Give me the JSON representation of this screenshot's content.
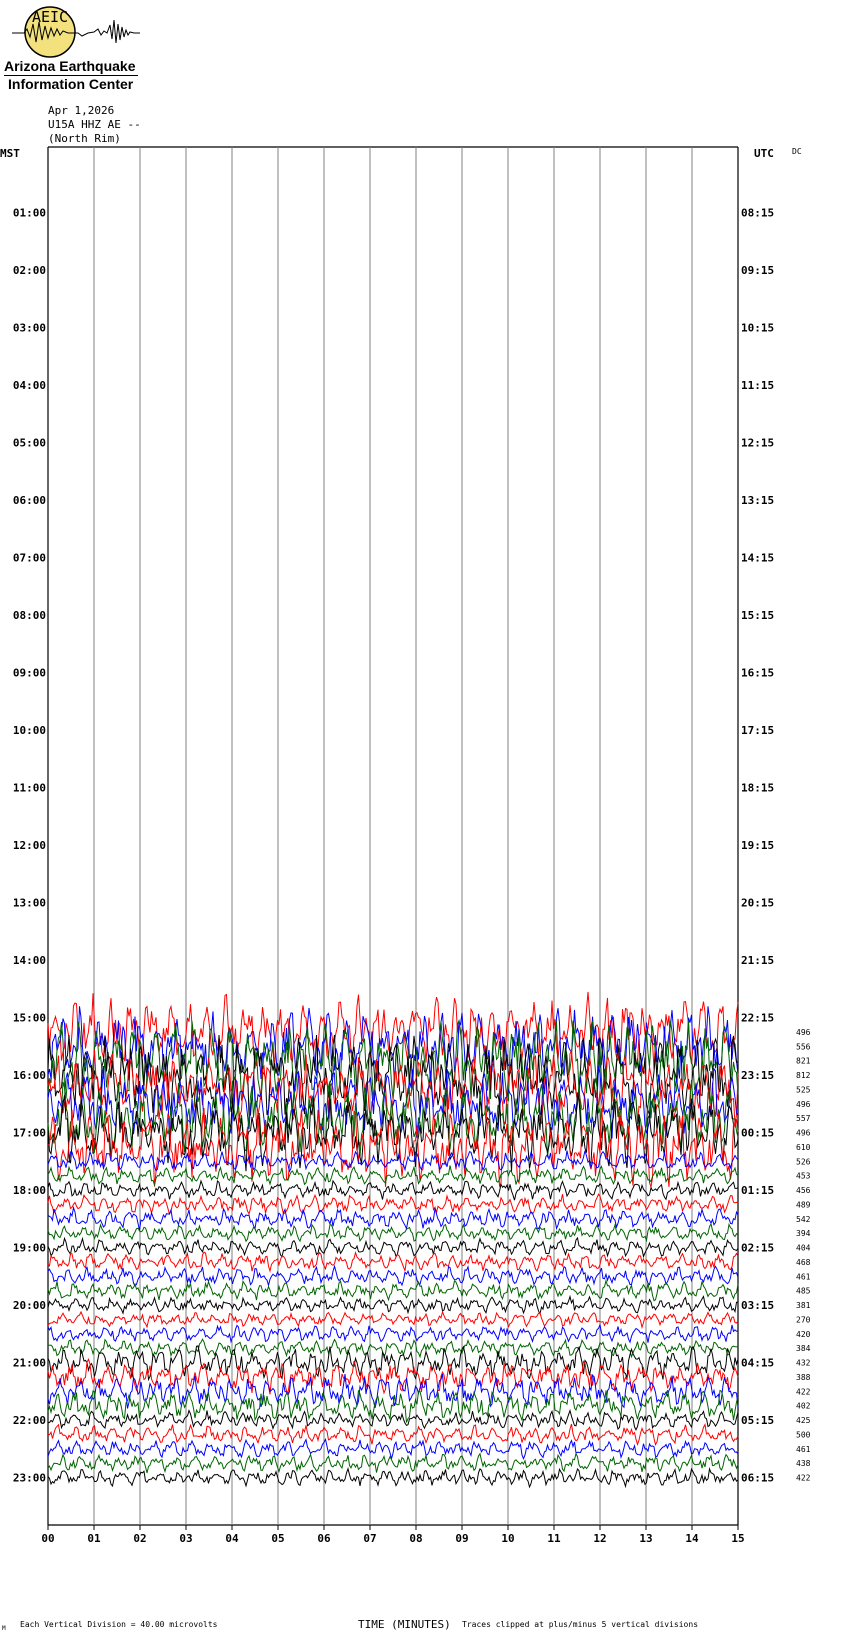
{
  "logo": {
    "abbr": "AEIC",
    "line1": "Arizona Earthquake",
    "line2": "Information Center"
  },
  "header": {
    "date": "Apr 1,2026",
    "station": "U15A HHZ AE --",
    "location": "(North Rim)"
  },
  "corner_labels": {
    "left": "MST",
    "right": "UTC",
    "dc": "DC"
  },
  "footer": {
    "scale": "Each Vertical Division =   40.00 microvolts",
    "xlabel": "TIME (MINUTES)",
    "clip": "Traces clipped at plus/minus 5 vertical divisions",
    "mark": "M"
  },
  "colors": {
    "trace_cycle": [
      "#000000",
      "#ff0000",
      "#0000ff",
      "#006400"
    ],
    "grid": "#808080"
  },
  "chart_data": {
    "type": "line",
    "title": "",
    "xlabel": "TIME (MINUTES)",
    "ylabel": "",
    "x_range": [
      0,
      15
    ],
    "x_ticks": [
      "00",
      "01",
      "02",
      "03",
      "04",
      "05",
      "06",
      "07",
      "08",
      "09",
      "10",
      "11",
      "12",
      "13",
      "14",
      "15"
    ],
    "y_ticks_mst": [
      "01:00",
      "02:00",
      "03:00",
      "04:00",
      "05:00",
      "06:00",
      "07:00",
      "08:00",
      "09:00",
      "10:00",
      "11:00",
      "12:00",
      "13:00",
      "14:00",
      "15:00",
      "16:00",
      "17:00",
      "18:00",
      "19:00",
      "20:00",
      "21:00",
      "22:00",
      "23:00"
    ],
    "y_ticks_utc": [
      "08:15",
      "09:15",
      "10:15",
      "11:15",
      "12:15",
      "13:15",
      "14:15",
      "15:15",
      "16:15",
      "17:15",
      "18:15",
      "19:15",
      "20:15",
      "21:15",
      "22:15",
      "23:15",
      "00:15",
      "01:15",
      "02:15",
      "03:15",
      "04:15",
      "05:15",
      "06:15"
    ],
    "first_trace_row": 61,
    "grid": true,
    "trace_rms_values": [
      496,
      556,
      821,
      812,
      525,
      496,
      557,
      496,
      610,
      526,
      453,
      456,
      489,
      542,
      394,
      404,
      468,
      461,
      485,
      381,
      270,
      420,
      384,
      432,
      388,
      422,
      402,
      425,
      500,
      461,
      438,
      422
    ]
  }
}
